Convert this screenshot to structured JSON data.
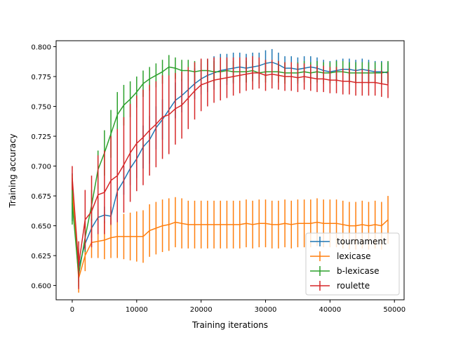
{
  "chart_data": {
    "type": "line",
    "title": "",
    "xlabel": "Training iterations",
    "ylabel": "Training accuracy",
    "xlim": [
      -2500,
      51500
    ],
    "ylim": [
      0.588,
      0.805
    ],
    "xticks": [
      0,
      10000,
      20000,
      30000,
      40000,
      50000
    ],
    "yticks": [
      0.6,
      0.625,
      0.65,
      0.675,
      0.7,
      0.725,
      0.75,
      0.775,
      0.8
    ],
    "grid": false,
    "legend_position": "lower-right",
    "x": [
      0,
      1000,
      2000,
      3000,
      4000,
      5000,
      6000,
      7000,
      8000,
      9000,
      10000,
      11000,
      12000,
      13000,
      14000,
      15000,
      16000,
      17000,
      18000,
      19000,
      20000,
      21000,
      22000,
      23000,
      24000,
      25000,
      26000,
      27000,
      28000,
      29000,
      30000,
      31000,
      32000,
      33000,
      34000,
      35000,
      36000,
      37000,
      38000,
      39000,
      40000,
      41000,
      42000,
      43000,
      44000,
      45000,
      46000,
      47000,
      48000,
      49000
    ],
    "series": [
      {
        "name": "tournament",
        "color": "#1f77b4",
        "values": [
          0.674,
          0.615,
          0.635,
          0.648,
          0.657,
          0.659,
          0.658,
          0.679,
          0.688,
          0.698,
          0.706,
          0.716,
          0.722,
          0.732,
          0.739,
          0.747,
          0.755,
          0.759,
          0.764,
          0.769,
          0.773,
          0.776,
          0.778,
          0.78,
          0.781,
          0.782,
          0.783,
          0.782,
          0.783,
          0.784,
          0.786,
          0.787,
          0.785,
          0.782,
          0.782,
          0.781,
          0.782,
          0.783,
          0.782,
          0.78,
          0.779,
          0.78,
          0.781,
          0.781,
          0.78,
          0.781,
          0.78,
          0.779,
          0.779,
          0.778
        ],
        "err": [
          0.02,
          0.012,
          0.009,
          0.008,
          0.007,
          0.007,
          0.008,
          0.01,
          0.012,
          0.014,
          0.016,
          0.018,
          0.02,
          0.018,
          0.017,
          0.016,
          0.015,
          0.014,
          0.013,
          0.013,
          0.013,
          0.014,
          0.014,
          0.014,
          0.013,
          0.013,
          0.012,
          0.012,
          0.012,
          0.011,
          0.011,
          0.011,
          0.01,
          0.01,
          0.01,
          0.01,
          0.01,
          0.009,
          0.009,
          0.009,
          0.009,
          0.009,
          0.009,
          0.009,
          0.009,
          0.009,
          0.009,
          0.009,
          0.009,
          0.009
        ]
      },
      {
        "name": "lexicase",
        "color": "#ff7f0e",
        "values": [
          0.68,
          0.606,
          0.625,
          0.636,
          0.637,
          0.638,
          0.64,
          0.641,
          0.641,
          0.641,
          0.641,
          0.641,
          0.646,
          0.648,
          0.65,
          0.651,
          0.653,
          0.652,
          0.651,
          0.651,
          0.651,
          0.651,
          0.651,
          0.651,
          0.651,
          0.651,
          0.651,
          0.652,
          0.651,
          0.652,
          0.652,
          0.651,
          0.651,
          0.652,
          0.651,
          0.652,
          0.652,
          0.652,
          0.653,
          0.652,
          0.652,
          0.652,
          0.651,
          0.65,
          0.65,
          0.651,
          0.65,
          0.651,
          0.65,
          0.655
        ],
        "err": [
          0.013,
          0.012,
          0.013,
          0.013,
          0.014,
          0.016,
          0.017,
          0.018,
          0.019,
          0.02,
          0.021,
          0.022,
          0.022,
          0.022,
          0.022,
          0.022,
          0.021,
          0.021,
          0.02,
          0.02,
          0.02,
          0.02,
          0.02,
          0.02,
          0.02,
          0.02,
          0.02,
          0.02,
          0.02,
          0.02,
          0.02,
          0.02,
          0.02,
          0.02,
          0.02,
          0.02,
          0.02,
          0.02,
          0.02,
          0.02,
          0.02,
          0.02,
          0.02,
          0.02,
          0.02,
          0.02,
          0.02,
          0.02,
          0.02,
          0.02
        ]
      },
      {
        "name": "b-lexicase",
        "color": "#2ca02c",
        "values": [
          0.669,
          0.609,
          0.64,
          0.667,
          0.697,
          0.711,
          0.727,
          0.743,
          0.751,
          0.756,
          0.762,
          0.769,
          0.773,
          0.776,
          0.779,
          0.783,
          0.782,
          0.78,
          0.78,
          0.779,
          0.78,
          0.78,
          0.779,
          0.779,
          0.78,
          0.779,
          0.779,
          0.779,
          0.78,
          0.778,
          0.779,
          0.779,
          0.779,
          0.778,
          0.778,
          0.778,
          0.779,
          0.778,
          0.779,
          0.778,
          0.778,
          0.779,
          0.779,
          0.778,
          0.778,
          0.778,
          0.778,
          0.778,
          0.778,
          0.779
        ],
        "err": [
          0.018,
          0.01,
          0.012,
          0.013,
          0.016,
          0.019,
          0.02,
          0.019,
          0.017,
          0.015,
          0.013,
          0.011,
          0.01,
          0.01,
          0.01,
          0.01,
          0.009,
          0.009,
          0.009,
          0.009,
          0.009,
          0.009,
          0.009,
          0.009,
          0.009,
          0.009,
          0.009,
          0.009,
          0.009,
          0.009,
          0.009,
          0.009,
          0.009,
          0.009,
          0.009,
          0.009,
          0.009,
          0.009,
          0.009,
          0.009,
          0.009,
          0.009,
          0.009,
          0.009,
          0.009,
          0.009,
          0.009,
          0.009,
          0.009,
          0.009
        ]
      },
      {
        "name": "roulette",
        "color": "#d62728",
        "values": [
          0.69,
          0.617,
          0.655,
          0.662,
          0.676,
          0.678,
          0.688,
          0.692,
          0.701,
          0.711,
          0.719,
          0.724,
          0.73,
          0.735,
          0.741,
          0.743,
          0.748,
          0.751,
          0.757,
          0.763,
          0.768,
          0.77,
          0.772,
          0.773,
          0.774,
          0.775,
          0.776,
          0.777,
          0.778,
          0.778,
          0.776,
          0.777,
          0.776,
          0.775,
          0.775,
          0.774,
          0.775,
          0.774,
          0.773,
          0.773,
          0.772,
          0.772,
          0.771,
          0.771,
          0.77,
          0.77,
          0.77,
          0.77,
          0.769,
          0.768
        ],
        "err": [
          0.01,
          0.02,
          0.025,
          0.03,
          0.033,
          0.035,
          0.037,
          0.039,
          0.04,
          0.041,
          0.04,
          0.04,
          0.038,
          0.036,
          0.035,
          0.033,
          0.03,
          0.028,
          0.026,
          0.024,
          0.022,
          0.02,
          0.019,
          0.018,
          0.017,
          0.016,
          0.015,
          0.014,
          0.014,
          0.013,
          0.013,
          0.012,
          0.012,
          0.012,
          0.012,
          0.012,
          0.011,
          0.011,
          0.011,
          0.011,
          0.011,
          0.011,
          0.011,
          0.011,
          0.011,
          0.011,
          0.011,
          0.011,
          0.011,
          0.011
        ]
      }
    ]
  }
}
